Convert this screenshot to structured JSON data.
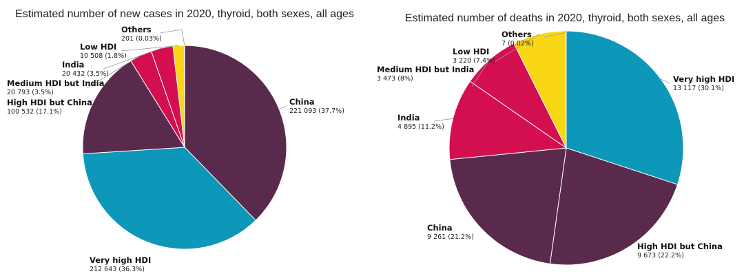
{
  "chart_data": [
    {
      "type": "pie",
      "title": "Estimated number of new cases in 2020, thyroid, both sexes, all ages",
      "slices": [
        {
          "name": "China",
          "value": 221093,
          "display": "221 093 (37.7%)",
          "color": "#5a2a4d"
        },
        {
          "name": "Very high HDI",
          "value": 212643,
          "display": "212 643 (36.3%)",
          "color": "#0d97b8"
        },
        {
          "name": "High HDI but China",
          "value": 100532,
          "display": "100 532 (17.1%)",
          "color": "#5a2a4d"
        },
        {
          "name": "Medium HDI but India",
          "value": 20793,
          "display": "20 793 (3.5%)",
          "color": "#d40f50"
        },
        {
          "name": "India",
          "value": 20432,
          "display": "20 432 (3.5%)",
          "color": "#d40f50"
        },
        {
          "name": "Low HDI",
          "value": 10508,
          "display": "10 508 (1.8%)",
          "color": "#f9d714"
        },
        {
          "name": "Others",
          "value": 201,
          "display": "201 (0.03%)",
          "color": "#f9d714"
        }
      ]
    },
    {
      "type": "pie",
      "title": "Estimated number of deaths in 2020, thyroid, both sexes, all ages",
      "slices": [
        {
          "name": "Very high HDI",
          "value": 13117,
          "display": "13 117 (30.1%)",
          "color": "#0d97b8"
        },
        {
          "name": "High HDI but China",
          "value": 9673,
          "display": "9 673 (22.2%)",
          "color": "#5a2a4d"
        },
        {
          "name": "China",
          "value": 9261,
          "display": "9 261 (21.2%)",
          "color": "#5a2a4d"
        },
        {
          "name": "India",
          "value": 4895,
          "display": "4 895 (11.2%)",
          "color": "#d40f50"
        },
        {
          "name": "Medium HDI but India",
          "value": 3473,
          "display": "3 473 (8%)",
          "color": "#d40f50"
        },
        {
          "name": "Low HDI",
          "value": 3220,
          "display": "3 220 (7.4%)",
          "color": "#f9d714"
        },
        {
          "name": "Others",
          "value": 7,
          "display": "7 (0.02%)",
          "color": "#f9d714"
        }
      ]
    }
  ]
}
